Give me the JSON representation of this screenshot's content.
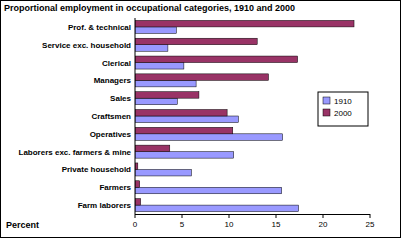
{
  "chart_data": {
    "type": "bar",
    "orientation": "horizontal",
    "title": "Proportional employment in occupational categories, 1910 and 2000",
    "x_label": "Percent",
    "categories": [
      "Prof. & technical",
      "Service exc. household",
      "Clerical",
      "Managers",
      "Sales",
      "Craftsmen",
      "Operatives",
      "Laborers exc. farmers & mine",
      "Private household",
      "Farmers",
      "Farm laborers"
    ],
    "series": [
      {
        "name": "1910",
        "color": "#9999ff",
        "values": [
          4.4,
          3.5,
          5.2,
          6.5,
          4.5,
          11.0,
          15.7,
          10.5,
          6.0,
          15.6,
          17.4
        ]
      },
      {
        "name": "2000",
        "color": "#993366",
        "values": [
          23.3,
          13.0,
          17.3,
          14.2,
          6.8,
          9.8,
          10.4,
          3.7,
          0.3,
          0.5,
          0.6
        ]
      }
    ],
    "xlim": [
      0,
      25
    ],
    "xticks": [
      0,
      5,
      10,
      15,
      20,
      25
    ],
    "grid": false,
    "legend": "right"
  }
}
